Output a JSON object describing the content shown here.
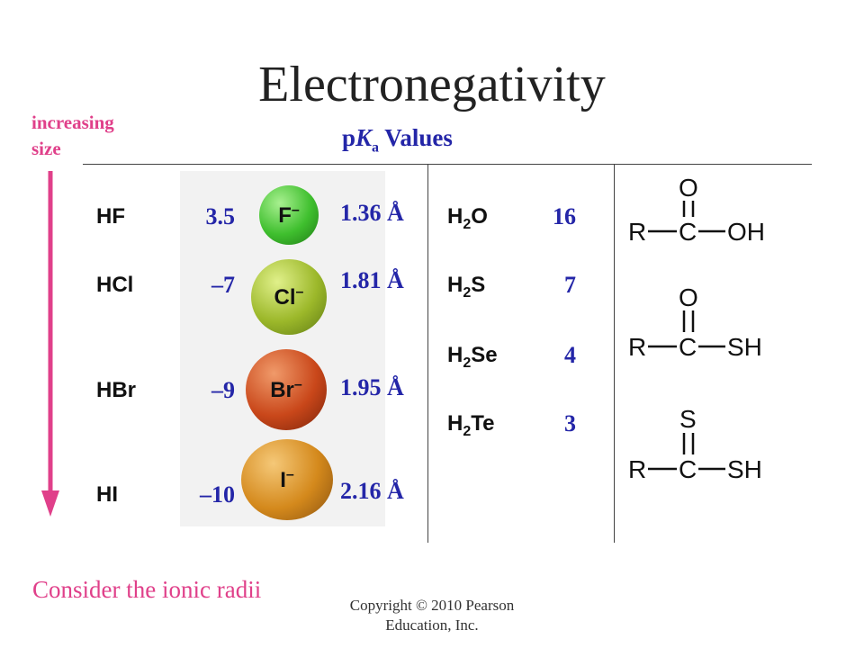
{
  "title": "Electronegativity",
  "side_label": {
    "line1": "increasing",
    "line2": "size"
  },
  "pka_header": {
    "p": "p",
    "K": "K",
    "a": "a",
    "rest": " Values"
  },
  "hydrogen_halides": [
    {
      "acid": "HF",
      "pka": "3.5",
      "ion": "F",
      "charge": "–",
      "radius": "1.36 Å",
      "color": "#3fbf2e"
    },
    {
      "acid": "HCl",
      "pka": "–7",
      "ion": "Cl",
      "charge": "–",
      "radius": "1.81 Å",
      "color": "#9cb82a"
    },
    {
      "acid": "HBr",
      "pka": "–9",
      "ion": "Br",
      "charge": "–",
      "radius": "1.95 Å",
      "color": "#c9471a"
    },
    {
      "acid": "HI",
      "pka": "–10",
      "ion": "I",
      "charge": "–",
      "radius": "2.16 Å",
      "color": "#d4891c"
    }
  ],
  "hydrides": [
    {
      "h": "H",
      "sub": "2",
      "el": "O",
      "pka": "16"
    },
    {
      "h": "H",
      "sub": "2",
      "el": "S",
      "pka": "7"
    },
    {
      "h": "H",
      "sub": "2",
      "el": "Se",
      "pka": "4"
    },
    {
      "h": "H",
      "sub": "2",
      "el": "Te",
      "pka": "3"
    }
  ],
  "structures": [
    {
      "top": "O",
      "R": "R",
      "C": "C",
      "end": "OH"
    },
    {
      "top": "O",
      "R": "R",
      "C": "C",
      "end": "SH"
    },
    {
      "top": "S",
      "R": "R",
      "C": "C",
      "end": "SH"
    }
  ],
  "footer": "Consider the ionic radii",
  "copyright": {
    "line1": "Copyright © 2010 Pearson",
    "line2": "Education, Inc."
  },
  "colors": {
    "accent_pink": "#e0408a",
    "value_blue": "#2426a8"
  }
}
